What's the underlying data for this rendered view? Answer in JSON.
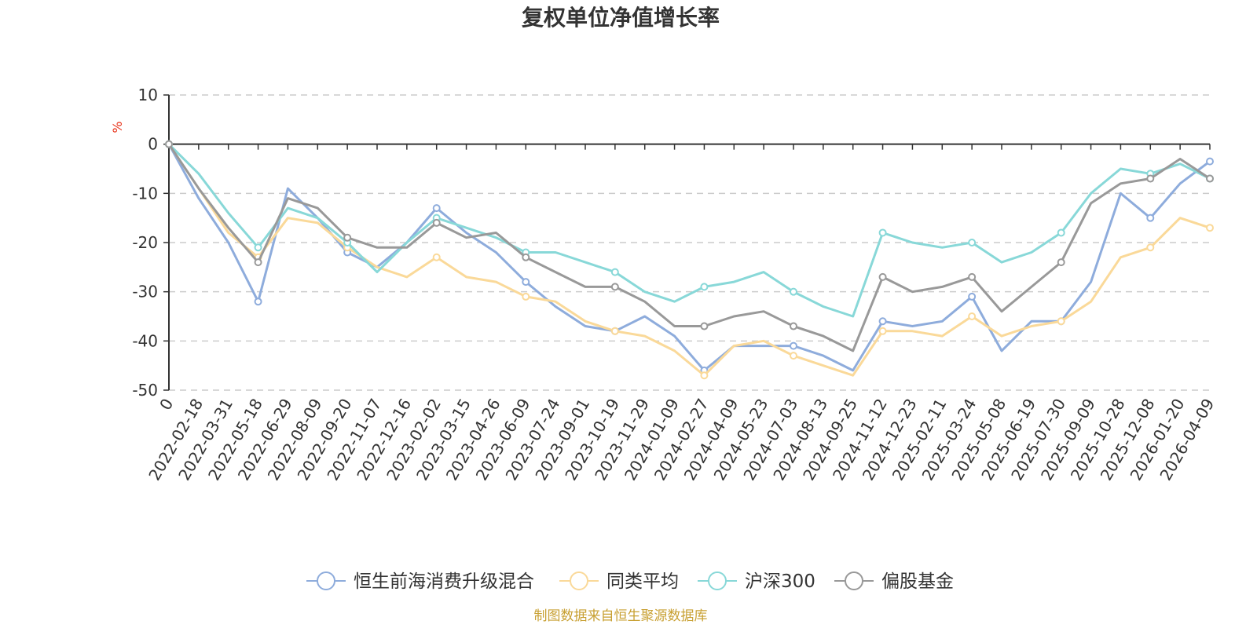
{
  "chart_data": {
    "type": "line",
    "title": "复权单位净值增长率",
    "ylabel": "%",
    "xlabel": "",
    "ylim": [
      -50,
      10
    ],
    "yticks": [
      "10",
      "0",
      "-10",
      "-20",
      "-30",
      "-40",
      "-50"
    ],
    "grid": true,
    "legend_position": "bottom",
    "x": [
      "0",
      "2022-02-18",
      "2022-03-31",
      "2022-05-18",
      "2022-06-29",
      "2022-08-09",
      "2022-09-20",
      "2022-11-07",
      "2022-12-16",
      "2023-02-02",
      "2023-03-15",
      "2023-04-26",
      "2023-06-09",
      "2023-07-24",
      "2023-09-01",
      "2023-10-19",
      "2023-11-29",
      "2024-01-09",
      "2024-02-27",
      "2024-04-09",
      "2024-05-23",
      "2024-07-03",
      "2024-08-13",
      "2024-09-25",
      "2024-11-12",
      "2024-12-23",
      "2025-02-11",
      "2025-03-24",
      "2025-05-08",
      "2025-06-19",
      "2025-07-30",
      "2025-09-09",
      "2025-10-28",
      "2025-12-08",
      "2026-01-20",
      "2026-04-09"
    ],
    "series": [
      {
        "name": "恒生前海消费升级混合",
        "color": "#8eacdc",
        "values": [
          0,
          -11,
          -20,
          -32,
          -9,
          -15,
          -22,
          -25,
          -20,
          -13,
          -18,
          -22,
          -28,
          -33,
          -37,
          -38,
          -35,
          -39,
          -46,
          -41,
          -41,
          -41,
          -43,
          -46,
          -36,
          -37,
          -36,
          -31,
          -42,
          -36,
          -36,
          -28,
          -10,
          -15,
          -8,
          -3.5
        ]
      },
      {
        "name": "同类平均",
        "color": "#fad999",
        "values": [
          0,
          -9,
          -18,
          -23,
          -15,
          -16,
          -21,
          -25,
          -27,
          -23,
          -27,
          -28,
          -31,
          -32,
          -36,
          -38,
          -39,
          -42,
          -47,
          -41,
          -40,
          -43,
          -45,
          -47,
          -38,
          -38,
          -39,
          -35,
          -39,
          -37,
          -36,
          -32,
          -23,
          -21,
          -15,
          -17
        ]
      },
      {
        "name": "沪深300",
        "color": "#88d8d8",
        "values": [
          0,
          -6,
          -14,
          -21,
          -13,
          -15,
          -20,
          -26,
          -20,
          -15,
          -17,
          -19,
          -22,
          -22,
          -24,
          -26,
          -30,
          -32,
          -29,
          -28,
          -26,
          -30,
          -33,
          -35,
          -18,
          -20,
          -21,
          -20,
          -24,
          -22,
          -18,
          -10,
          -5,
          -6,
          -4,
          -7
        ]
      },
      {
        "name": "偏股基金",
        "color": "#999999",
        "values": [
          0,
          -9,
          -17,
          -24,
          -11,
          -13,
          -19,
          -21,
          -21,
          -16,
          -19,
          -18,
          -23,
          -26,
          -29,
          -29,
          -32,
          -37,
          -37,
          -35,
          -34,
          -37,
          -39,
          -42,
          -27,
          -30,
          -29,
          -27,
          -34,
          -29,
          -24,
          -12,
          -8,
          -7,
          -3,
          -7
        ]
      }
    ]
  },
  "footer": {
    "source": "制图数据来自恒生聚源数据库"
  }
}
